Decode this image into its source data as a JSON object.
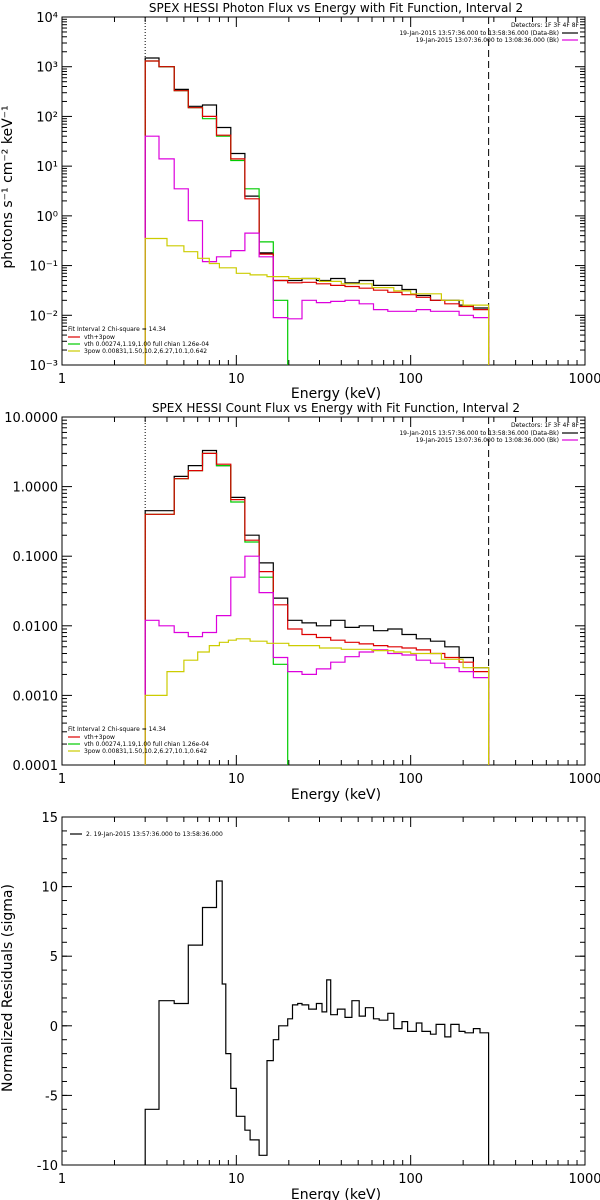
{
  "chart_data": [
    {
      "type": "line",
      "title": "SPEX HESSI Photon Flux vs Energy with Fit Function, Interval 2",
      "xlabel": "Energy (keV)",
      "ylabel": "photons s⁻¹ cm⁻² keV⁻¹",
      "xscale": "log",
      "yscale": "log",
      "xlim": [
        1,
        1000
      ],
      "ylim": [
        0.001,
        10000
      ],
      "x_ticks": [
        {
          "v": 1,
          "label": "1"
        },
        {
          "v": 10,
          "label": "10"
        },
        {
          "v": 100,
          "label": "100"
        },
        {
          "v": 1000,
          "label": "1000"
        }
      ],
      "y_ticks": [
        {
          "v": 0.001,
          "label": "10⁻³"
        },
        {
          "v": 0.01,
          "label": "10⁻²"
        },
        {
          "v": 0.1,
          "label": "10⁻¹"
        },
        {
          "v": 1,
          "label": "10⁰"
        },
        {
          "v": 10,
          "label": "10¹"
        },
        {
          "v": 100,
          "label": "10²"
        },
        {
          "v": 1000,
          "label": "10³"
        },
        {
          "v": 10000,
          "label": "10⁴"
        }
      ],
      "vlines": [
        {
          "x": 3,
          "style": "dotted"
        },
        {
          "x": 280,
          "style": "dashed"
        }
      ],
      "info_text": [
        "Detectors: 1F 3F 4F 8F"
      ],
      "legend_right": [
        {
          "text": "19-Jan-2015 13:57:36.000 to 13:58:36.000 (Data-Bk)",
          "color": "#000000"
        },
        {
          "text": "19-Jan-2015 13:07:36.000 to 13:08:36.000 (Bk)",
          "color": "#dd00dd"
        }
      ],
      "fit_label": "Fit Interval  2    Chi-square = 14.34",
      "legend_left": [
        {
          "text": "vth+3pow",
          "color": "#dd0000"
        },
        {
          "text": "vth 0.00274,1.19,1.00  full chian 1.26e-04",
          "color": "#00cc00"
        },
        {
          "text": "3pow 0.00831,1.50,10.2,6.27,10.1,0.642",
          "color": "#cccc00"
        }
      ],
      "series": [
        {
          "color": "#000000",
          "x": [
            3,
            3.6,
            4.4,
            5.3,
            6.4,
            7.7,
            9.3,
            11.2,
            13.5,
            16.3,
            19.7,
            23.8,
            28.8,
            34.8,
            42,
            50.7,
            61.2,
            73.9,
            89.2,
            107.7,
            130,
            157,
            189.6,
            228.9,
            280
          ],
          "y": [
            1500,
            1000,
            350,
            160,
            170,
            60,
            18,
            2.5,
            0.18,
            0.05,
            0.05,
            0.055,
            0.05,
            0.055,
            0.045,
            0.05,
            0.04,
            0.04,
            0.033,
            0.025,
            0.02,
            0.02,
            0.016,
            0.014,
            0.013
          ]
        },
        {
          "color": "#00cc00",
          "x": [
            3,
            3.6,
            4.4,
            5.3,
            6.4,
            7.7,
            9.3,
            11.2,
            13.5,
            16.3,
            19.7
          ],
          "y": [
            1300,
            1000,
            330,
            150,
            90,
            40,
            13,
            3.5,
            0.3,
            0.02,
            0.0012
          ]
        },
        {
          "color": "#dd0000",
          "x": [
            3,
            3.6,
            4.4,
            5.3,
            6.4,
            7.7,
            9.3,
            11.2,
            13.5,
            16.3,
            19.7,
            23.8,
            28.8,
            34.8,
            42,
            50.7,
            61.2,
            73.9,
            89.2,
            107.7,
            130,
            157,
            189.6,
            228.9,
            280
          ],
          "y": [
            1300,
            1000,
            330,
            150,
            100,
            42,
            14,
            2.2,
            0.17,
            0.05,
            0.045,
            0.046,
            0.043,
            0.04,
            0.038,
            0.035,
            0.032,
            0.029,
            0.026,
            0.023,
            0.02,
            0.017,
            0.015,
            0.013,
            0.012
          ]
        },
        {
          "color": "#dd00dd",
          "x": [
            3,
            3.6,
            4.4,
            5.3,
            6.4,
            7.7,
            9.3,
            11.2,
            13.5,
            16.3,
            19.7,
            23.8,
            28.8,
            34.8,
            42,
            50.7,
            61.2,
            73.9,
            89.2,
            107.7,
            130,
            157,
            189.6,
            228.9,
            280
          ],
          "y": [
            40,
            14,
            3.5,
            0.8,
            0.12,
            0.15,
            0.2,
            0.45,
            0.15,
            0.009,
            0.0085,
            0.02,
            0.018,
            0.019,
            0.02,
            0.017,
            0.013,
            0.012,
            0.012,
            0.013,
            0.012,
            0.012,
            0.01,
            0.009,
            0.008
          ]
        },
        {
          "color": "#cccc00",
          "x": [
            3,
            4,
            5,
            6,
            7,
            8,
            10,
            12,
            15,
            20,
            30,
            40,
            60,
            80,
            100,
            150,
            200,
            280
          ],
          "y": [
            0.35,
            0.25,
            0.19,
            0.14,
            0.11,
            0.09,
            0.07,
            0.065,
            0.06,
            0.055,
            0.048,
            0.043,
            0.036,
            0.031,
            0.027,
            0.02,
            0.016,
            0.012
          ]
        }
      ]
    },
    {
      "type": "line",
      "title": "SPEX HESSI Count Flux vs Energy with Fit Function, Interval 2",
      "xlabel": "Energy (keV)",
      "ylabel": "",
      "xscale": "log",
      "yscale": "log",
      "xlim": [
        1,
        1000
      ],
      "ylim": [
        0.0001,
        10
      ],
      "x_ticks": [
        {
          "v": 1,
          "label": "1"
        },
        {
          "v": 10,
          "label": "10"
        },
        {
          "v": 100,
          "label": "100"
        },
        {
          "v": 1000,
          "label": "1000"
        }
      ],
      "y_ticks": [
        {
          "v": 0.0001,
          "label": "0.0001"
        },
        {
          "v": 0.001,
          "label": "0.0010"
        },
        {
          "v": 0.01,
          "label": "0.0100"
        },
        {
          "v": 0.1,
          "label": "0.1000"
        },
        {
          "v": 1,
          "label": "1.0000"
        },
        {
          "v": 10,
          "label": "10.0000"
        }
      ],
      "vlines": [
        {
          "x": 3,
          "style": "dotted"
        },
        {
          "x": 280,
          "style": "dashed"
        }
      ],
      "info_text": [
        "Detectors: 1F 3F 4F 8F"
      ],
      "legend_right": [
        {
          "text": "19-Jan-2015 13:57:36.000 to 13:58:36.000 (Data-Bk)",
          "color": "#000000"
        },
        {
          "text": "19-Jan-2015 13:07:36.000 to 13:08:36.000 (Bk)",
          "color": "#dd00dd"
        }
      ],
      "fit_label": "Fit Interval  2    Chi-square = 14.34",
      "legend_left": [
        {
          "text": "vth+3pow",
          "color": "#dd0000"
        },
        {
          "text": "vth 0.00274,1.19,1.00  full chian 1.26e-04",
          "color": "#00cc00"
        },
        {
          "text": "3pow 0.00831,1.50,10.2,6.27,10.1,0.642",
          "color": "#cccc00"
        }
      ],
      "series": [
        {
          "color": "#000000",
          "x": [
            3,
            3.6,
            4.4,
            5.3,
            6.4,
            7.7,
            9.3,
            11.2,
            13.5,
            16.3,
            19.7,
            23.8,
            28.8,
            34.8,
            42,
            50.7,
            61.2,
            73.9,
            89.2,
            107.7,
            130,
            157,
            189.6,
            228.9,
            280
          ],
          "y": [
            0.45,
            0.45,
            1.4,
            2.0,
            3.3,
            2.0,
            0.7,
            0.2,
            0.08,
            0.025,
            0.012,
            0.011,
            0.01,
            0.012,
            0.0095,
            0.01,
            0.0085,
            0.009,
            0.0075,
            0.0065,
            0.006,
            0.005,
            0.0035,
            0.0025,
            0.0015
          ]
        },
        {
          "color": "#00cc00",
          "x": [
            3,
            3.6,
            4.4,
            5.3,
            6.4,
            7.7,
            9.3,
            11.2,
            13.5,
            16.3,
            19.7
          ],
          "y": [
            0.4,
            0.4,
            1.3,
            1.7,
            3.0,
            2.0,
            0.6,
            0.16,
            0.05,
            0.0028,
            0.00015
          ]
        },
        {
          "color": "#dd0000",
          "x": [
            3,
            3.6,
            4.4,
            5.3,
            6.4,
            7.7,
            9.3,
            11.2,
            13.5,
            16.3,
            19.7,
            23.8,
            28.8,
            34.8,
            42,
            50.7,
            61.2,
            73.9,
            89.2,
            107.7,
            130,
            157,
            189.6,
            228.9,
            280
          ],
          "y": [
            0.4,
            0.4,
            1.3,
            1.7,
            3.0,
            2.1,
            0.65,
            0.17,
            0.06,
            0.02,
            0.009,
            0.0075,
            0.0068,
            0.0062,
            0.0058,
            0.0055,
            0.0052,
            0.005,
            0.0048,
            0.0045,
            0.004,
            0.0035,
            0.003,
            0.0022,
            0.0014
          ]
        },
        {
          "color": "#dd00dd",
          "x": [
            3,
            3.6,
            4.4,
            5.3,
            6.4,
            7.7,
            9.3,
            11.2,
            13.5,
            16.3,
            19.7,
            23.8,
            28.8,
            34.8,
            42,
            50.7,
            61.2,
            73.9,
            89.2,
            107.7,
            130,
            157,
            189.6,
            228.9,
            280
          ],
          "y": [
            0.012,
            0.01,
            0.008,
            0.007,
            0.008,
            0.014,
            0.05,
            0.1,
            0.03,
            0.0035,
            0.0022,
            0.002,
            0.0024,
            0.003,
            0.0036,
            0.0042,
            0.0045,
            0.004,
            0.0038,
            0.0032,
            0.0029,
            0.0025,
            0.0022,
            0.0018,
            0.0012
          ]
        },
        {
          "color": "#cccc00",
          "x": [
            3,
            4,
            5,
            6,
            7,
            8,
            9,
            10,
            12,
            15,
            20,
            30,
            40,
            60,
            80,
            100,
            150,
            200,
            280
          ],
          "y": [
            0.001,
            0.0022,
            0.0032,
            0.0042,
            0.0052,
            0.0058,
            0.0062,
            0.0065,
            0.006,
            0.0056,
            0.0052,
            0.0048,
            0.0046,
            0.0044,
            0.0042,
            0.004,
            0.0033,
            0.0025,
            0.0015
          ]
        }
      ]
    },
    {
      "type": "line",
      "title": "",
      "xlabel": "Energy (keV)",
      "ylabel": "Normalized Residuals (sigma)",
      "xscale": "log",
      "yscale": "linear",
      "xlim": [
        1,
        1000
      ],
      "ylim": [
        -10,
        15
      ],
      "x_ticks": [
        {
          "v": 1,
          "label": "1"
        },
        {
          "v": 10,
          "label": "10"
        },
        {
          "v": 100,
          "label": "100"
        },
        {
          "v": 1000,
          "label": "1000"
        }
      ],
      "y_ticks": [
        {
          "v": -10,
          "label": "-10"
        },
        {
          "v": -5,
          "label": "-5"
        },
        {
          "v": 0,
          "label": "0"
        },
        {
          "v": 5,
          "label": "5"
        },
        {
          "v": 10,
          "label": "10"
        },
        {
          "v": 15,
          "label": "15"
        }
      ],
      "vlines": [],
      "info_text": [],
      "legend_right": [],
      "fit_label": "",
      "legend_left": [
        {
          "text": "2. 19-Jan-2015 13:57:36.000 to 13:58:36.000",
          "color": "#000000"
        }
      ],
      "series": [
        {
          "color": "#000000",
          "x": [
            3,
            3.6,
            4.4,
            5.3,
            6.4,
            7.7,
            8.3,
            8.7,
            9.3,
            10,
            11.2,
            12,
            13.5,
            15,
            16.3,
            17.5,
            19.7,
            21,
            22.5,
            23.8,
            26,
            28.8,
            31,
            33,
            34.8,
            38,
            42,
            46,
            50.7,
            55,
            61.2,
            66,
            73.9,
            80,
            89.2,
            96,
            107.7,
            116,
            130,
            140,
            157,
            170,
            189.6,
            205,
            228.9,
            250,
            280
          ],
          "y": [
            -6,
            1.8,
            1.6,
            5.8,
            8.5,
            10.4,
            3,
            -2,
            -4.5,
            -6.5,
            -7.5,
            -8.2,
            -9.3,
            -2.5,
            -1,
            0,
            0.5,
            1.5,
            1.6,
            1.5,
            1.2,
            1.6,
            1,
            3.3,
            0.8,
            1.2,
            0.6,
            1.8,
            0.7,
            1.3,
            0.5,
            0.4,
            0.9,
            -0.2,
            0.3,
            -0.4,
            0.2,
            -0.4,
            -0.6,
            0.1,
            -0.8,
            0.1,
            -0.4,
            -0.5,
            -0.2,
            -0.5,
            -10.2
          ]
        }
      ]
    }
  ]
}
